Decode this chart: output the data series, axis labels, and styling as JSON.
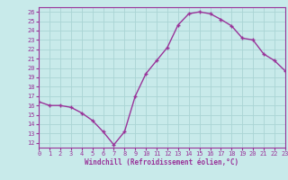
{
  "x": [
    0,
    1,
    2,
    3,
    4,
    5,
    6,
    7,
    8,
    9,
    10,
    11,
    12,
    13,
    14,
    15,
    16,
    17,
    18,
    19,
    20,
    21,
    22,
    23
  ],
  "y": [
    16.4,
    16.0,
    16.0,
    15.8,
    15.2,
    14.4,
    13.2,
    11.8,
    13.2,
    17.0,
    19.4,
    20.8,
    22.2,
    24.6,
    25.8,
    26.0,
    25.8,
    25.2,
    24.5,
    23.2,
    23.0,
    21.5,
    20.8,
    19.7
  ],
  "line_color": "#993399",
  "bg_color": "#c8eaea",
  "grid_color": "#aad4d4",
  "xlabel": "Windchill (Refroidissement éolien,°C)",
  "ylabel_ticks": [
    12,
    13,
    14,
    15,
    16,
    17,
    18,
    19,
    20,
    21,
    22,
    23,
    24,
    25,
    26
  ],
  "xlim": [
    0,
    23
  ],
  "ylim": [
    11.5,
    26.5
  ],
  "xlabel_color": "#993399",
  "tick_color": "#993399",
  "font_name": "monospace"
}
